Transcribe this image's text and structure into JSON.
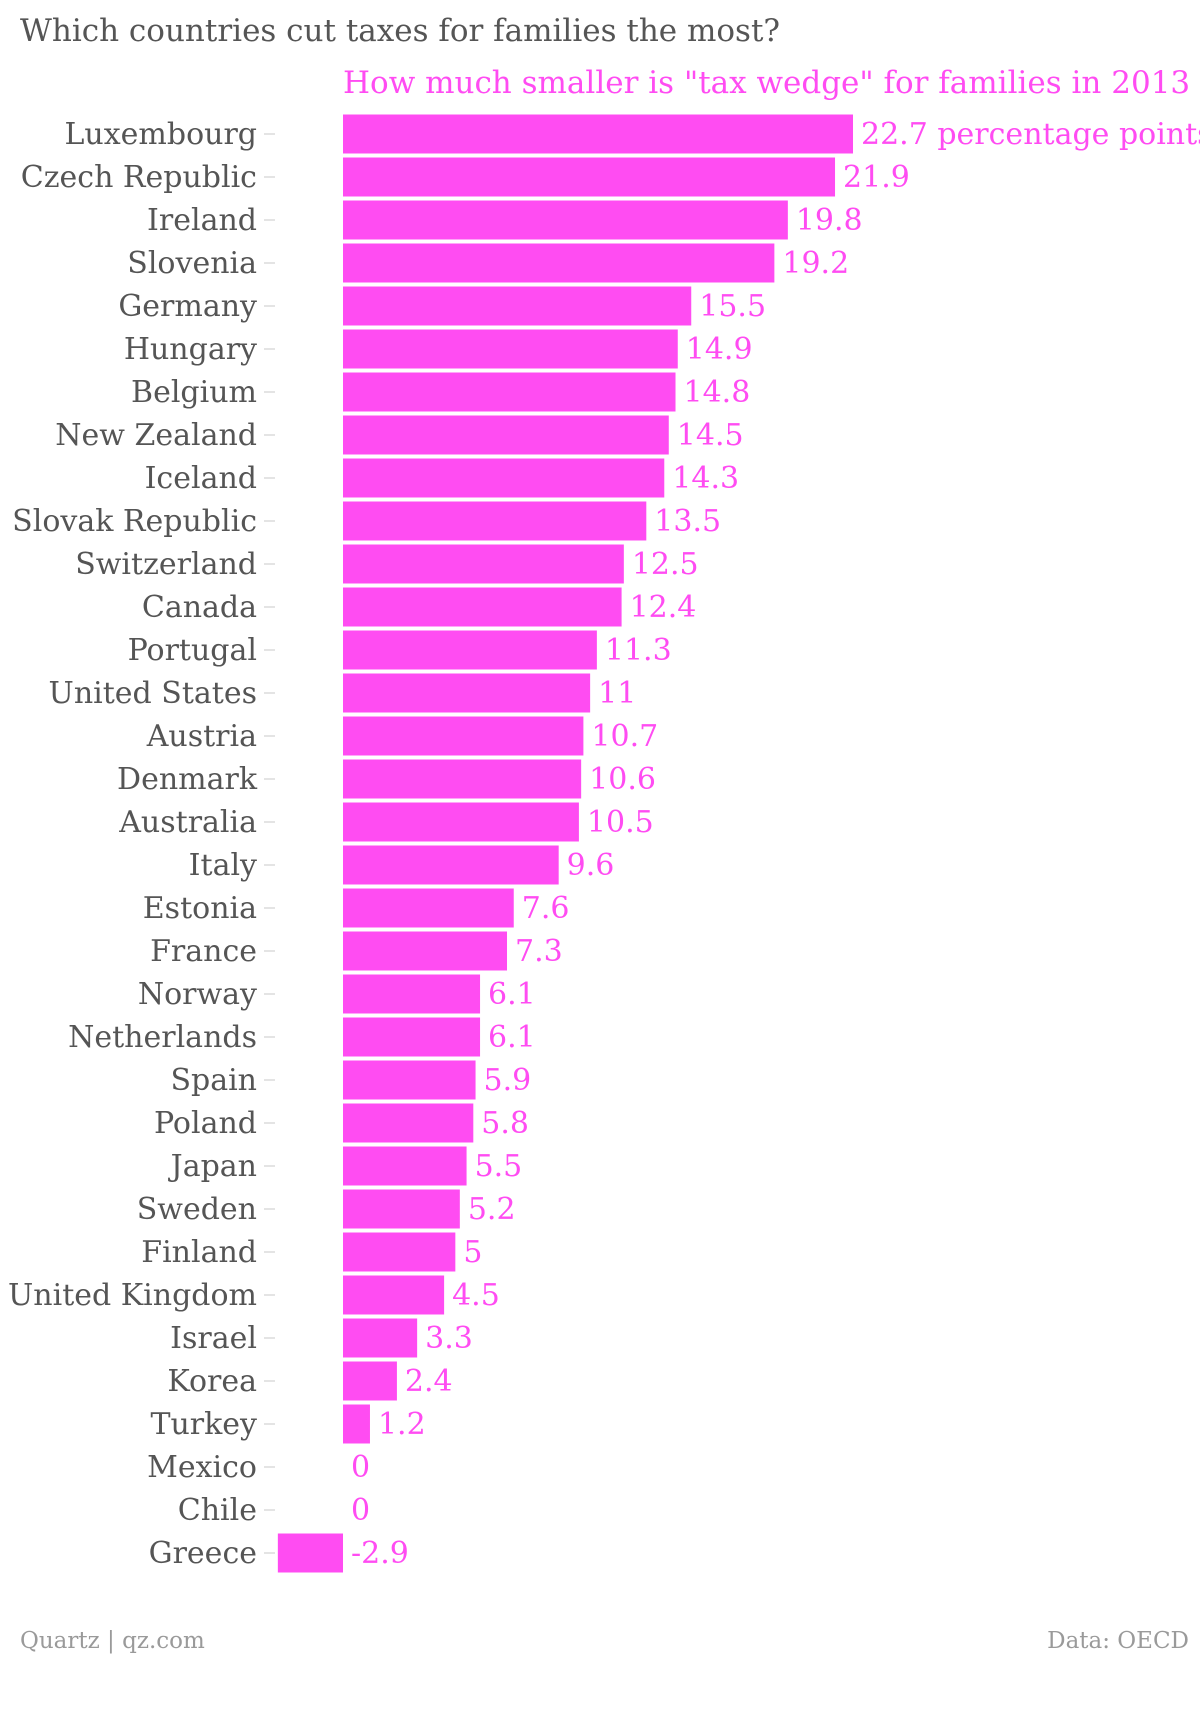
{
  "chart_data": {
    "type": "bar",
    "orientation": "horizontal",
    "title": "Which countries cut taxes for families the most?",
    "series_title": "How much smaller is \"tax wedge\" for families in 2013",
    "first_value_suffix": " percentage points",
    "categories": [
      "Luxembourg",
      "Czech Republic",
      "Ireland",
      "Slovenia",
      "Germany",
      "Hungary",
      "Belgium",
      "New Zealand",
      "Iceland",
      "Slovak Republic",
      "Switzerland",
      "Canada",
      "Portugal",
      "United States",
      "Austria",
      "Denmark",
      "Australia",
      "Italy",
      "Estonia",
      "France",
      "Norway",
      "Netherlands",
      "Spain",
      "Poland",
      "Japan",
      "Sweden",
      "Finland",
      "United Kingdom",
      "Israel",
      "Korea",
      "Turkey",
      "Mexico",
      "Chile",
      "Greece"
    ],
    "values": [
      22.7,
      21.9,
      19.8,
      19.2,
      15.5,
      14.9,
      14.8,
      14.5,
      14.3,
      13.5,
      12.5,
      12.4,
      11.3,
      11,
      10.7,
      10.6,
      10.5,
      9.6,
      7.6,
      7.3,
      6.1,
      6.1,
      5.9,
      5.8,
      5.5,
      5.2,
      5,
      4.5,
      3.3,
      2.4,
      1.2,
      0,
      0,
      -2.9
    ],
    "xlim": [
      -2.9,
      22.7
    ],
    "grid": false,
    "legend": "none",
    "bar_color": "#ff4cf2"
  },
  "footer": {
    "source_left": "Quartz | qz.com",
    "source_right": "Data: OECD"
  }
}
